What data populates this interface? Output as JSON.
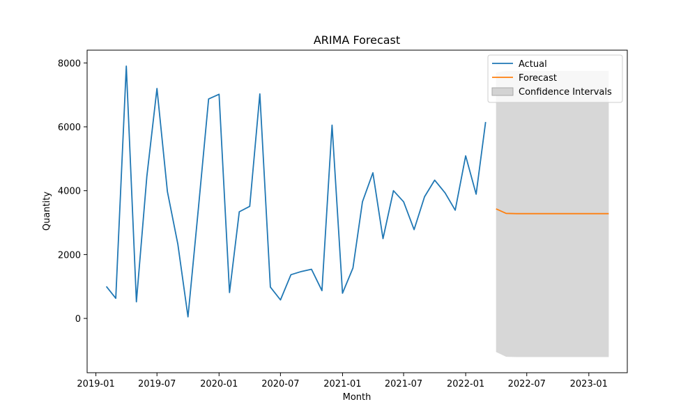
{
  "chart_data": {
    "type": "line",
    "title": "ARIMA Forecast",
    "xlabel": "Month",
    "ylabel": "Quantity",
    "x_ticks": [
      "2019-01",
      "2019-07",
      "2020-01",
      "2020-07",
      "2021-01",
      "2021-07",
      "2022-01",
      "2022-07",
      "2023-01"
    ],
    "y_ticks": [
      0,
      2000,
      4000,
      6000,
      8000
    ],
    "xlim": [
      "2018-12-06",
      "2023-04-25"
    ],
    "ylim": [
      -1700,
      8400
    ],
    "grid": false,
    "legend_position": "top-right",
    "series": [
      {
        "name": "Actual",
        "color": "#1f77b4",
        "x": [
          "2019-02",
          "2019-03",
          "2019-04",
          "2019-05",
          "2019-06",
          "2019-07",
          "2019-08",
          "2019-09",
          "2019-10",
          "2019-11",
          "2019-12",
          "2020-01",
          "2020-02",
          "2020-03",
          "2020-04",
          "2020-05",
          "2020-06",
          "2020-07",
          "2020-08",
          "2020-09",
          "2020-10",
          "2020-11",
          "2020-12",
          "2021-01",
          "2021-02",
          "2021-03",
          "2021-04",
          "2021-05",
          "2021-06",
          "2021-07",
          "2021-08",
          "2021-09",
          "2021-10",
          "2021-11",
          "2021-12",
          "2022-01",
          "2022-02",
          "2022-03"
        ],
        "values": [
          1000,
          630,
          7900,
          520,
          4450,
          7200,
          3970,
          2320,
          50,
          3460,
          6870,
          7020,
          810,
          3340,
          3510,
          7030,
          980,
          580,
          1370,
          1470,
          1540,
          870,
          6050,
          790,
          1580,
          3650,
          4560,
          2500,
          4000,
          3650,
          2780,
          3810,
          4330,
          3930,
          3390,
          5090,
          3890,
          6150
        ]
      },
      {
        "name": "Forecast",
        "color": "#ff7f0e",
        "x": [
          "2022-04",
          "2022-05",
          "2022-06",
          "2022-07",
          "2022-08",
          "2022-09",
          "2022-10",
          "2022-11",
          "2022-12",
          "2023-01",
          "2023-02",
          "2023-03"
        ],
        "values": [
          3430,
          3290,
          3280,
          3280,
          3280,
          3280,
          3280,
          3280,
          3280,
          3280,
          3280,
          3280
        ]
      }
    ],
    "confidence_interval": {
      "name": "Confidence Intervals",
      "color": "#d3d3d3",
      "x": [
        "2022-04",
        "2022-05",
        "2022-06",
        "2022-07",
        "2022-08",
        "2022-09",
        "2022-10",
        "2022-11",
        "2022-12",
        "2023-01",
        "2023-02",
        "2023-03"
      ],
      "lower": [
        -1050,
        -1200,
        -1210,
        -1210,
        -1210,
        -1210,
        -1210,
        -1210,
        -1210,
        -1210,
        -1210,
        -1210
      ],
      "upper": [
        7700,
        7750,
        7750,
        7750,
        7750,
        7750,
        7750,
        7750,
        7750,
        7750,
        7750,
        7750
      ]
    }
  }
}
